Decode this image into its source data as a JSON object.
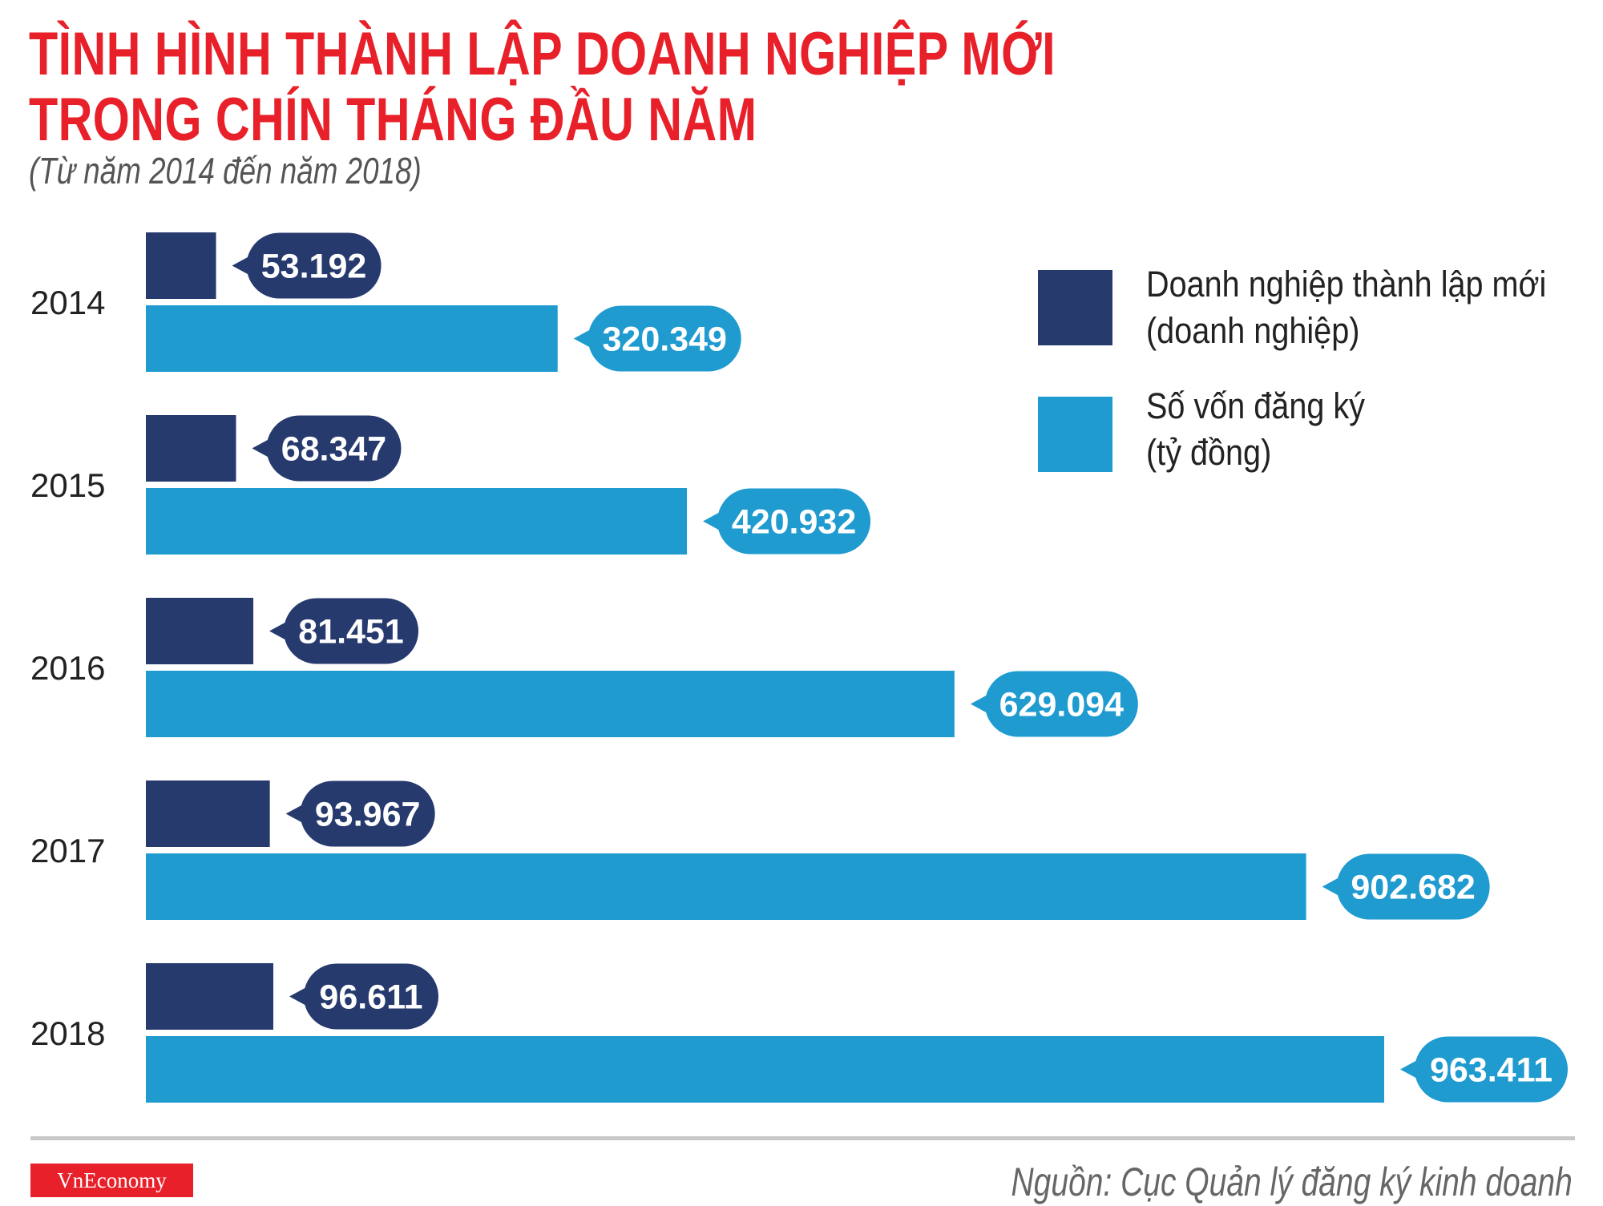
{
  "title_line1": "TÌNH HÌNH THÀNH LẬP DOANH NGHIỆP MỚI",
  "title_line2": "TRONG CHÍN THÁNG ĐẦU NĂM",
  "subtitle": "(Từ năm 2014 đến năm 2018)",
  "legend": {
    "series1_line1": "Doanh nghiệp thành lập mới",
    "series1_line2": "(doanh nghiệp)",
    "series2_line1": "Số vốn đăng ký",
    "series2_line2": "(tỷ đồng)"
  },
  "source": "Nguồn: Cục Quản lý đăng ký kinh doanh",
  "logo_text": "VnEconomy",
  "colors": {
    "title": "#e8202a",
    "series1": "#273a6e",
    "series2": "#1f9bd0"
  },
  "chart_data": {
    "type": "bar",
    "orientation": "horizontal",
    "categories": [
      "2014",
      "2015",
      "2016",
      "2017",
      "2018"
    ],
    "series": [
      {
        "name": "Doanh nghiệp thành lập mới (doanh nghiệp)",
        "values": [
          53192,
          68347,
          81451,
          93967,
          96611
        ],
        "labels": [
          "53.192",
          "68.347",
          "81.451",
          "93.967",
          "96.611"
        ]
      },
      {
        "name": "Số vốn đăng ký (tỷ đồng)",
        "values": [
          320349,
          420932,
          629094,
          902682,
          963411
        ],
        "labels": [
          "320.349",
          "420.932",
          "629.094",
          "902.682",
          "963.411"
        ]
      }
    ],
    "grid": false,
    "legend_position": "top-right"
  }
}
